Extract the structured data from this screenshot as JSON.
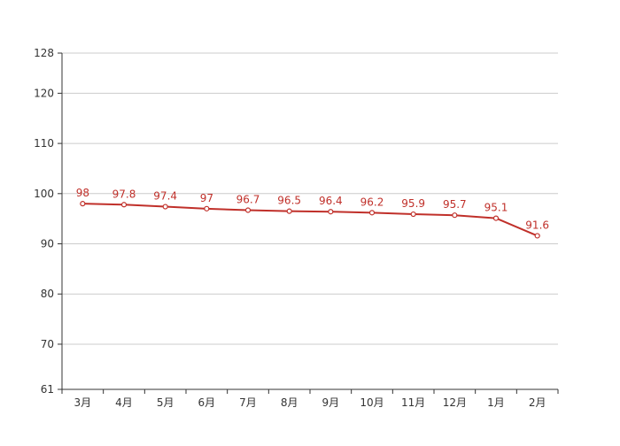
{
  "chart_data": {
    "type": "line",
    "title": "",
    "xlabel": "",
    "ylabel": "",
    "categories": [
      "3月",
      "4月",
      "5月",
      "6月",
      "7月",
      "8月",
      "9月",
      "10月",
      "11月",
      "12月",
      "1月",
      "2月"
    ],
    "series": [
      {
        "values": [
          98,
          97.8,
          97.4,
          97,
          96.7,
          96.5,
          96.4,
          96.2,
          95.9,
          95.7,
          95.1,
          91.6
        ],
        "color": "#c0302a",
        "data_labels": [
          "98",
          "97.8",
          "97.4",
          "97",
          "96.7",
          "96.5",
          "96.4",
          "96.2",
          "95.9",
          "95.7",
          "95.1",
          "91.6"
        ]
      }
    ],
    "ylim": [
      61,
      128
    ],
    "y_ticks": [
      61,
      70,
      80,
      90,
      100,
      110,
      120,
      128
    ],
    "y_tick_labels": [
      "61",
      "70",
      "80",
      "90",
      "100",
      "110",
      "120",
      "128"
    ],
    "grid": true,
    "legend": "none",
    "colors": {
      "line": "#c0302a",
      "label": "#c0302a",
      "grid": "#cccccc",
      "axis": "#333333",
      "tick_label": "#333333"
    }
  }
}
